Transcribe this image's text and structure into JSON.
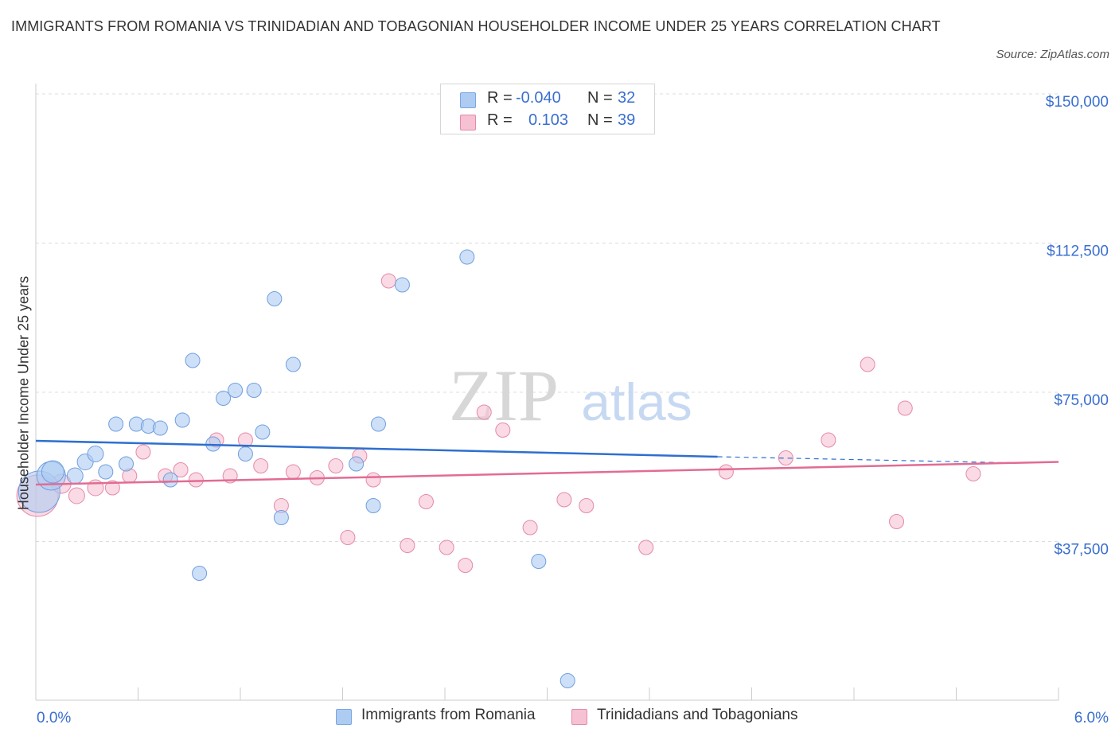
{
  "title": "IMMIGRANTS FROM ROMANIA VS TRINIDADIAN AND TOBAGONIAN HOUSEHOLDER INCOME UNDER 25 YEARS CORRELATION CHART",
  "source": "Source: ZipAtlas.com",
  "watermark": {
    "zip": "ZIP",
    "atlas": "atlas"
  },
  "legend_top": {
    "rows": [
      {
        "r_label": "R =",
        "r_value": "-0.040",
        "n_label": "N =",
        "n_value": "32",
        "color": "#aecbf2",
        "border": "#7aa6e3"
      },
      {
        "r_label": "R =",
        "r_value": "0.103",
        "n_label": "N =",
        "n_value": "39",
        "color": "#f6c1d2",
        "border": "#e48aa8"
      }
    ]
  },
  "chart_data": {
    "type": "scatter",
    "xlabel": "",
    "ylabel": "Householder Income Under 25 years",
    "xlim": [
      0.0,
      6.0
    ],
    "ylim": [
      0,
      150000
    ],
    "x_tick_labels": [
      "0.0%",
      "6.0%"
    ],
    "y_ticks": [
      37500,
      75000,
      112500,
      150000
    ],
    "y_tick_labels": [
      "$37,500",
      "$75,000",
      "$112,500",
      "$150,000"
    ],
    "grid": true,
    "series": [
      {
        "name": "Immigrants from Romania",
        "color": "#aecbf2",
        "stroke": "#6f9fe0",
        "line_color": "#2e6fcf",
        "trend": {
          "x_start": 0.0,
          "y_start": 62800,
          "x_end": 4.0,
          "y_end": 58800,
          "dashed_to_x": 5.8,
          "dashed_to_y": 57200
        },
        "points": [
          [
            0.02,
            50000,
            26
          ],
          [
            0.09,
            54000,
            18
          ],
          [
            0.1,
            55000,
            14
          ],
          [
            0.23,
            54000,
            10
          ],
          [
            0.29,
            57500,
            10
          ],
          [
            0.35,
            59500,
            10
          ],
          [
            0.41,
            55000,
            9
          ],
          [
            0.47,
            67000,
            9
          ],
          [
            0.53,
            57000,
            9
          ],
          [
            0.59,
            67000,
            9
          ],
          [
            0.66,
            66500,
            9
          ],
          [
            0.73,
            66000,
            9
          ],
          [
            0.79,
            53000,
            9
          ],
          [
            0.86,
            68000,
            9
          ],
          [
            0.92,
            83000,
            9
          ],
          [
            0.96,
            29500,
            9
          ],
          [
            1.04,
            62000,
            9
          ],
          [
            1.1,
            73500,
            9
          ],
          [
            1.17,
            75500,
            9
          ],
          [
            1.23,
            59500,
            9
          ],
          [
            1.28,
            75500,
            9
          ],
          [
            1.33,
            65000,
            9
          ],
          [
            1.4,
            98500,
            9
          ],
          [
            1.44,
            43500,
            9
          ],
          [
            1.51,
            82000,
            9
          ],
          [
            1.88,
            57000,
            9
          ],
          [
            1.98,
            46500,
            9
          ],
          [
            2.01,
            67000,
            9
          ],
          [
            2.15,
            102000,
            9
          ],
          [
            2.53,
            109000,
            9
          ],
          [
            2.95,
            32500,
            9
          ],
          [
            3.12,
            2500,
            9
          ]
        ]
      },
      {
        "name": "Trinidadians and Tobagonians",
        "color": "#f6c1d2",
        "stroke": "#e48aa8",
        "line_color": "#e26c93",
        "trend": {
          "x_start": 0.0,
          "y_start": 51800,
          "x_end": 6.0,
          "y_end": 57500
        },
        "points": [
          [
            0.01,
            49000,
            26
          ],
          [
            0.15,
            52000,
            12
          ],
          [
            0.24,
            49000,
            10
          ],
          [
            0.35,
            51000,
            10
          ],
          [
            0.45,
            51000,
            9
          ],
          [
            0.55,
            54000,
            9
          ],
          [
            0.63,
            60000,
            9
          ],
          [
            0.76,
            54000,
            9
          ],
          [
            0.85,
            55500,
            9
          ],
          [
            0.94,
            53000,
            9
          ],
          [
            1.06,
            63000,
            9
          ],
          [
            1.14,
            54000,
            9
          ],
          [
            1.23,
            63000,
            9
          ],
          [
            1.32,
            56500,
            9
          ],
          [
            1.44,
            46500,
            9
          ],
          [
            1.51,
            55000,
            9
          ],
          [
            1.65,
            53500,
            9
          ],
          [
            1.76,
            56500,
            9
          ],
          [
            1.83,
            38500,
            9
          ],
          [
            1.9,
            59000,
            9
          ],
          [
            1.98,
            53000,
            9
          ],
          [
            2.07,
            103000,
            9
          ],
          [
            2.18,
            36500,
            9
          ],
          [
            2.29,
            47500,
            9
          ],
          [
            2.41,
            36000,
            9
          ],
          [
            2.52,
            31500,
            9
          ],
          [
            2.63,
            70000,
            9
          ],
          [
            2.74,
            65500,
            9
          ],
          [
            2.9,
            41000,
            9
          ],
          [
            3.1,
            48000,
            9
          ],
          [
            3.23,
            46500,
            9
          ],
          [
            3.58,
            36000,
            9
          ],
          [
            4.05,
            55000,
            9
          ],
          [
            4.4,
            58500,
            9
          ],
          [
            4.65,
            63000,
            9
          ],
          [
            4.88,
            82000,
            9
          ],
          [
            5.05,
            42500,
            9
          ],
          [
            5.1,
            71000,
            9
          ],
          [
            5.5,
            54500,
            9
          ]
        ]
      }
    ]
  }
}
